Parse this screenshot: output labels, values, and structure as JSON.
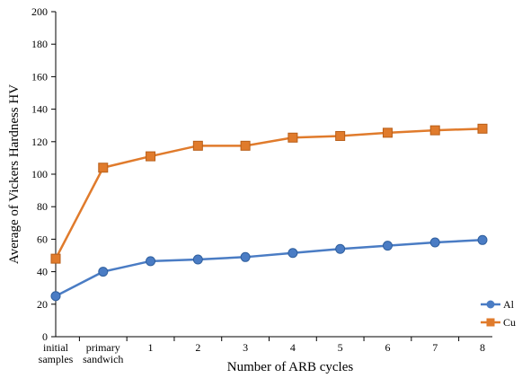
{
  "chart_data": {
    "type": "line",
    "title": "",
    "xlabel": "Number of ARB cycles",
    "ylabel": "Average of Vickers Hardness HV",
    "categories": [
      [
        "initial",
        "samples"
      ],
      [
        "primary",
        "sandwich"
      ],
      [
        "1"
      ],
      [
        "2"
      ],
      [
        "3"
      ],
      [
        "4"
      ],
      [
        "5"
      ],
      [
        "6"
      ],
      [
        "7"
      ],
      [
        "8"
      ]
    ],
    "ylim": [
      0,
      200
    ],
    "yticks": [
      0,
      20,
      40,
      60,
      80,
      100,
      120,
      140,
      160,
      180,
      200
    ],
    "grid": false,
    "legend_position": "bottom-right",
    "series": [
      {
        "name": "Al",
        "color": "#4a7cc4",
        "marker": "circle",
        "values": [
          25,
          40,
          46.5,
          47.5,
          49,
          51.5,
          54,
          56,
          58,
          59.5
        ]
      },
      {
        "name": "Cu",
        "color": "#e07b2c",
        "marker": "square",
        "values": [
          48,
          104,
          111,
          117.5,
          117.5,
          122.5,
          123.5,
          125.5,
          127,
          128
        ]
      }
    ]
  }
}
